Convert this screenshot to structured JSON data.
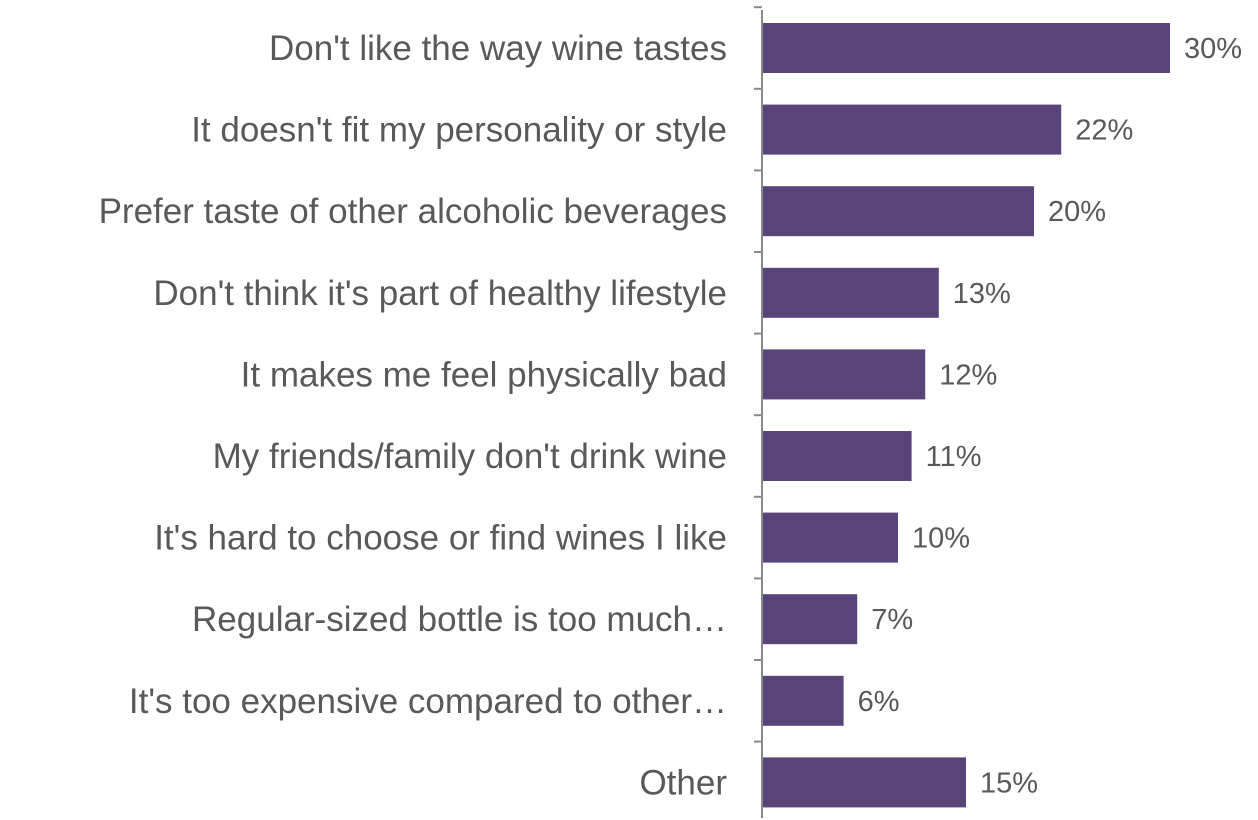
{
  "chart_data": {
    "type": "bar",
    "orientation": "horizontal",
    "categories": [
      "Don't like the way wine tastes",
      "It doesn't fit my personality or style",
      "Prefer taste of other alcoholic beverages",
      "Don't think it's part of healthy lifestyle",
      "It makes me feel physically bad",
      "My friends/family don't drink wine",
      "It's hard to choose or find wines I like",
      "Regular-sized bottle is too much…",
      "It's too expensive compared to other…",
      "Other"
    ],
    "values": [
      30,
      22,
      20,
      13,
      12,
      11,
      10,
      7,
      6,
      15
    ],
    "value_labels": [
      "30%",
      "22%",
      "20%",
      "13%",
      "12%",
      "11%",
      "10%",
      "7%",
      "6%",
      "15%"
    ],
    "unit": "%",
    "xlim": [
      0,
      30
    ],
    "grid": false,
    "legend": "none",
    "colors": {
      "bar": "#584478",
      "axis": "#898989",
      "text": "#595959"
    }
  }
}
